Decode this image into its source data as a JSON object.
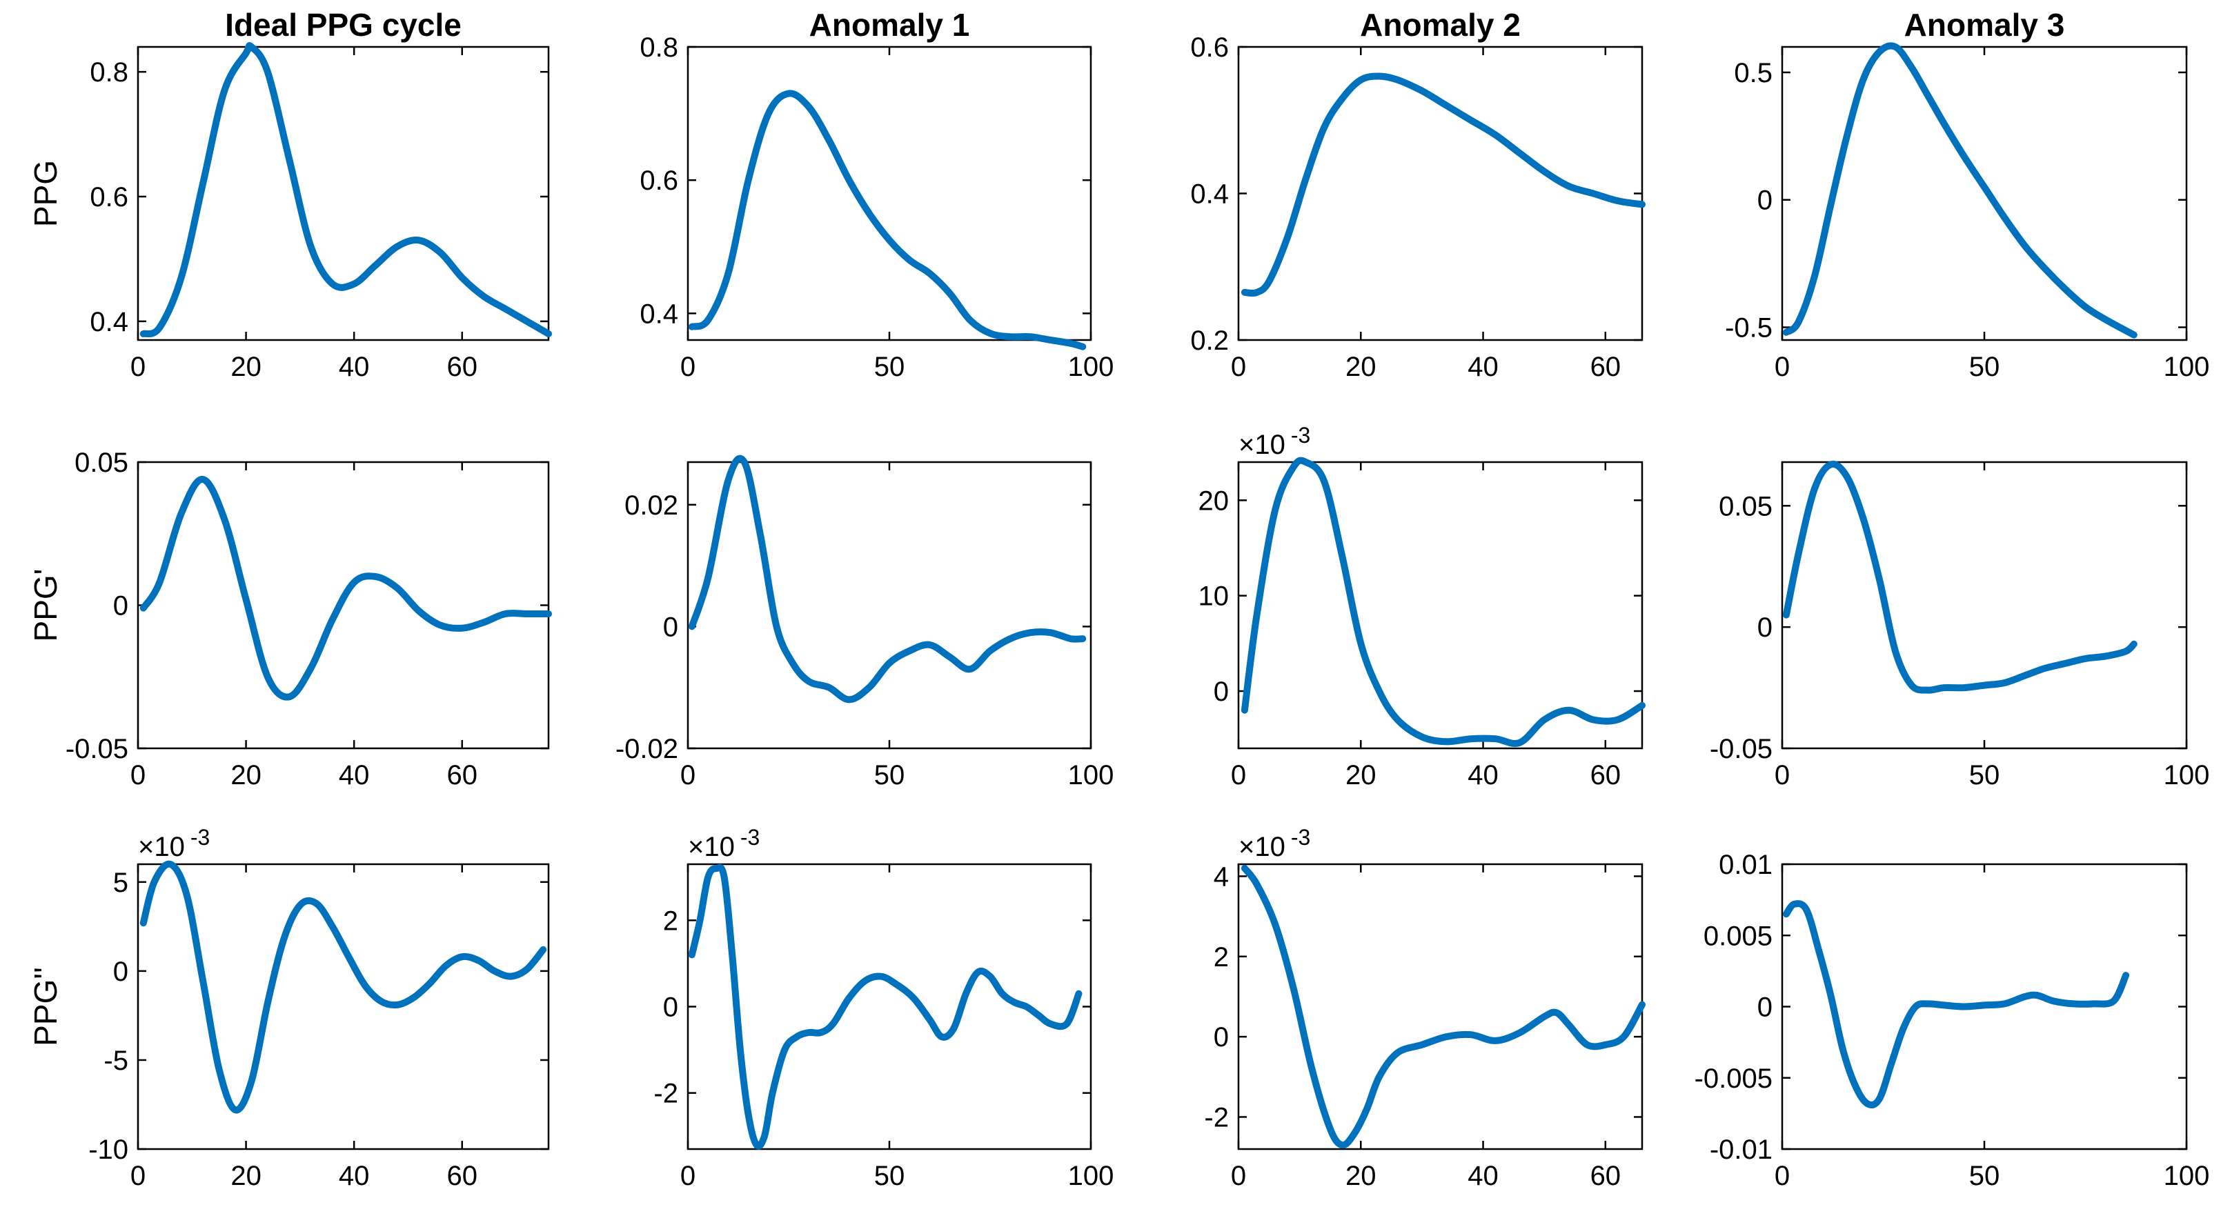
{
  "figure": {
    "column_titles": [
      "Ideal PPG cycle",
      "Anomaly 1",
      "Anomaly 2",
      "Anomaly 3"
    ],
    "row_labels": [
      "PPG",
      "PPG'",
      "PPG''"
    ],
    "line_color": "#0072BD"
  },
  "chart_data": [
    {
      "type": "line",
      "row": 0,
      "col": 0,
      "title": "Ideal PPG cycle",
      "ylabel": "PPG",
      "xlim": [
        0,
        76
      ],
      "ylim": [
        0.37,
        0.84
      ],
      "xticks": [
        0,
        20,
        40,
        60
      ],
      "xtick_labels": [
        "0",
        "20",
        "40",
        "60"
      ],
      "yticks": [
        0.4,
        0.6,
        0.8
      ],
      "ytick_labels": [
        "0.4",
        "0.6",
        "0.8"
      ],
      "exponent": "",
      "x": [
        1,
        4,
        8,
        12,
        16,
        20,
        21,
        24,
        28,
        32,
        36,
        40,
        44,
        48,
        52,
        56,
        60,
        64,
        68,
        72,
        76
      ],
      "y": [
        0.38,
        0.39,
        0.47,
        0.62,
        0.77,
        0.83,
        0.84,
        0.8,
        0.66,
        0.52,
        0.46,
        0.46,
        0.49,
        0.52,
        0.53,
        0.51,
        0.47,
        0.44,
        0.42,
        0.4,
        0.38
      ]
    },
    {
      "type": "line",
      "row": 0,
      "col": 1,
      "title": "Anomaly 1",
      "ylabel": "",
      "xlim": [
        0,
        100
      ],
      "ylim": [
        0.36,
        0.8
      ],
      "xticks": [
        0,
        50,
        100
      ],
      "xtick_labels": [
        "0",
        "50",
        "100"
      ],
      "yticks": [
        0.4,
        0.6,
        0.8
      ],
      "ytick_labels": [
        "0.4",
        "0.6",
        "0.8"
      ],
      "exponent": "",
      "x": [
        1,
        5,
        10,
        15,
        20,
        25,
        30,
        35,
        40,
        45,
        50,
        55,
        60,
        65,
        70,
        75,
        80,
        85,
        90,
        95,
        98
      ],
      "y": [
        0.38,
        0.39,
        0.46,
        0.6,
        0.7,
        0.73,
        0.71,
        0.66,
        0.6,
        0.55,
        0.51,
        0.48,
        0.46,
        0.43,
        0.39,
        0.37,
        0.365,
        0.365,
        0.36,
        0.355,
        0.35
      ]
    },
    {
      "type": "line",
      "row": 0,
      "col": 2,
      "title": "Anomaly 2",
      "ylabel": "",
      "xlim": [
        0,
        66
      ],
      "ylim": [
        0.2,
        0.6
      ],
      "xticks": [
        0,
        20,
        40,
        60
      ],
      "xtick_labels": [
        "0",
        "20",
        "40",
        "60"
      ],
      "yticks": [
        0.2,
        0.4,
        0.6
      ],
      "ytick_labels": [
        "0.2",
        "0.4",
        "0.6"
      ],
      "exponent": "",
      "x": [
        1,
        3,
        5,
        8,
        11,
        14,
        17,
        20,
        23,
        26,
        30,
        34,
        38,
        42,
        46,
        50,
        54,
        58,
        62,
        66
      ],
      "y": [
        0.265,
        0.265,
        0.28,
        0.34,
        0.42,
        0.49,
        0.53,
        0.555,
        0.56,
        0.555,
        0.54,
        0.52,
        0.5,
        0.48,
        0.455,
        0.43,
        0.41,
        0.4,
        0.39,
        0.385
      ]
    },
    {
      "type": "line",
      "row": 0,
      "col": 3,
      "title": "Anomaly 3",
      "ylabel": "",
      "xlim": [
        0,
        100
      ],
      "ylim": [
        -0.55,
        0.6
      ],
      "xticks": [
        0,
        50,
        100
      ],
      "xtick_labels": [
        "0",
        "50",
        "100"
      ],
      "yticks": [
        -0.5,
        0,
        0.5
      ],
      "ytick_labels": [
        "-0.5",
        "0",
        "0.5"
      ],
      "exponent": "",
      "x": [
        1,
        4,
        8,
        12,
        16,
        20,
        24,
        28,
        32,
        36,
        40,
        45,
        50,
        55,
        60,
        65,
        70,
        75,
        80,
        87
      ],
      "y": [
        -0.52,
        -0.48,
        -0.3,
        -0.02,
        0.25,
        0.47,
        0.58,
        0.6,
        0.52,
        0.41,
        0.3,
        0.17,
        0.05,
        -0.07,
        -0.18,
        -0.27,
        -0.35,
        -0.42,
        -0.47,
        -0.53
      ]
    },
    {
      "type": "line",
      "row": 1,
      "col": 0,
      "title": "",
      "ylabel": "PPG'",
      "xlim": [
        0,
        76
      ],
      "ylim": [
        -0.05,
        0.05
      ],
      "xticks": [
        0,
        20,
        40,
        60
      ],
      "xtick_labels": [
        "0",
        "20",
        "40",
        "60"
      ],
      "yticks": [
        -0.05,
        0,
        0.05
      ],
      "ytick_labels": [
        "-0.05",
        "0",
        "0.05"
      ],
      "exponent": "",
      "x": [
        1,
        4,
        8,
        12,
        16,
        20,
        24,
        28,
        32,
        36,
        40,
        44,
        48,
        52,
        56,
        60,
        64,
        68,
        72,
        76
      ],
      "y": [
        -0.001,
        0.008,
        0.032,
        0.044,
        0.03,
        0.002,
        -0.025,
        -0.032,
        -0.022,
        -0.005,
        0.008,
        0.01,
        0.006,
        -0.002,
        -0.007,
        -0.008,
        -0.006,
        -0.003,
        -0.003,
        -0.003
      ]
    },
    {
      "type": "line",
      "row": 1,
      "col": 1,
      "title": "",
      "ylabel": "",
      "xlim": [
        0,
        100
      ],
      "ylim": [
        -0.02,
        0.027
      ],
      "xticks": [
        0,
        50,
        100
      ],
      "xtick_labels": [
        "0",
        "50",
        "100"
      ],
      "yticks": [
        -0.02,
        0,
        0.02
      ],
      "ytick_labels": [
        "-0.02",
        "0",
        "0.02"
      ],
      "exponent": "",
      "x": [
        1,
        5,
        10,
        14,
        18,
        22,
        26,
        30,
        35,
        40,
        45,
        50,
        55,
        60,
        65,
        70,
        75,
        80,
        85,
        90,
        95,
        98
      ],
      "y": [
        0,
        0.008,
        0.024,
        0.027,
        0.015,
        0,
        -0.006,
        -0.009,
        -0.01,
        -0.012,
        -0.01,
        -0.006,
        -0.004,
        -0.003,
        -0.005,
        -0.007,
        -0.004,
        -0.002,
        -0.001,
        -0.001,
        -0.002,
        -0.002
      ]
    },
    {
      "type": "line",
      "row": 1,
      "col": 2,
      "title": "",
      "ylabel": "",
      "xlim": [
        0,
        66
      ],
      "ylim": [
        -6,
        24
      ],
      "xticks": [
        0,
        20,
        40,
        60
      ],
      "xtick_labels": [
        "0",
        "20",
        "40",
        "60"
      ],
      "yticks": [
        0,
        10,
        20
      ],
      "ytick_labels": [
        "0",
        "10",
        "20"
      ],
      "exponent": "×10 -3",
      "x": [
        1,
        3,
        6,
        9,
        11,
        14,
        17,
        20,
        23,
        26,
        30,
        34,
        38,
        42,
        46,
        50,
        54,
        58,
        62,
        66
      ],
      "y": [
        -2,
        8,
        19,
        23.5,
        24,
        22,
        14,
        5,
        0,
        -3,
        -4.8,
        -5.3,
        -5,
        -5,
        -5.4,
        -3,
        -2,
        -3,
        -3,
        -1.5
      ]
    },
    {
      "type": "line",
      "row": 1,
      "col": 3,
      "title": "",
      "ylabel": "",
      "xlim": [
        0,
        100
      ],
      "ylim": [
        -0.05,
        0.068
      ],
      "xticks": [
        0,
        50,
        100
      ],
      "xtick_labels": [
        "0",
        "50",
        "100"
      ],
      "yticks": [
        -0.05,
        0,
        0.05
      ],
      "ytick_labels": [
        "-0.05",
        "0",
        "0.05"
      ],
      "exponent": "",
      "x": [
        1,
        4,
        8,
        12,
        16,
        20,
        24,
        28,
        32,
        36,
        40,
        45,
        50,
        55,
        60,
        65,
        70,
        75,
        80,
        85,
        87
      ],
      "y": [
        0.005,
        0.03,
        0.057,
        0.067,
        0.062,
        0.045,
        0.02,
        -0.01,
        -0.024,
        -0.026,
        -0.025,
        -0.025,
        -0.024,
        -0.023,
        -0.02,
        -0.017,
        -0.015,
        -0.013,
        -0.012,
        -0.01,
        -0.007
      ]
    },
    {
      "type": "line",
      "row": 2,
      "col": 0,
      "title": "",
      "ylabel": "PPG''",
      "xlim": [
        0,
        76
      ],
      "ylim": [
        -10,
        6
      ],
      "xticks": [
        0,
        20,
        40,
        60
      ],
      "xtick_labels": [
        "0",
        "20",
        "40",
        "60"
      ],
      "yticks": [
        -10,
        -5,
        0,
        5
      ],
      "ytick_labels": [
        "-10",
        "-5",
        "0",
        "5"
      ],
      "exponent": "×10 -3",
      "x": [
        1,
        3,
        6,
        9,
        12,
        15,
        18,
        21,
        24,
        27,
        30,
        33,
        36,
        39,
        42,
        45,
        48,
        51,
        54,
        57,
        60,
        63,
        66,
        69,
        72,
        75
      ],
      "y": [
        2.7,
        5,
        6,
        4.3,
        -0.5,
        -5.5,
        -7.8,
        -6.2,
        -1.8,
        1.8,
        3.7,
        3.8,
        2.5,
        0.8,
        -0.8,
        -1.7,
        -1.9,
        -1.5,
        -0.7,
        0.3,
        0.8,
        0.6,
        0,
        -0.3,
        0.1,
        1.2
      ]
    },
    {
      "type": "line",
      "row": 2,
      "col": 1,
      "title": "",
      "ylabel": "",
      "xlim": [
        0,
        100
      ],
      "ylim": [
        -3.3,
        3.3
      ],
      "xticks": [
        0,
        50,
        100
      ],
      "xtick_labels": [
        "0",
        "50",
        "100"
      ],
      "yticks": [
        -2,
        0,
        2
      ],
      "ytick_labels": [
        "-2",
        "0",
        "2"
      ],
      "exponent": "×10 -3",
      "x": [
        1,
        3,
        5,
        7,
        9,
        11,
        13,
        15,
        17,
        19,
        21,
        24,
        27,
        30,
        33,
        36,
        40,
        44,
        48,
        52,
        56,
        60,
        63,
        66,
        69,
        72,
        75,
        78,
        81,
        84,
        87,
        90,
        94,
        97
      ],
      "y": [
        1.2,
        2,
        3,
        3.2,
        3,
        1.2,
        -1,
        -2.5,
        -3.2,
        -3,
        -2,
        -1,
        -0.7,
        -0.6,
        -0.6,
        -0.4,
        0.2,
        0.6,
        0.7,
        0.5,
        0.2,
        -0.3,
        -0.7,
        -0.5,
        0.3,
        0.8,
        0.7,
        0.3,
        0.1,
        0,
        -0.2,
        -0.4,
        -0.4,
        0.3
      ]
    },
    {
      "type": "line",
      "row": 2,
      "col": 2,
      "title": "",
      "ylabel": "",
      "xlim": [
        0,
        66
      ],
      "ylim": [
        -2.8,
        4.3
      ],
      "xticks": [
        0,
        20,
        40,
        60
      ],
      "xtick_labels": [
        "0",
        "20",
        "40",
        "60"
      ],
      "yticks": [
        -2,
        0,
        2,
        4
      ],
      "ytick_labels": [
        "-2",
        "0",
        "2",
        "4"
      ],
      "exponent": "×10 -3",
      "x": [
        1,
        3,
        6,
        9,
        12,
        15,
        17,
        19,
        21,
        23,
        26,
        30,
        34,
        38,
        42,
        46,
        50,
        52,
        54,
        57,
        60,
        63,
        66
      ],
      "y": [
        4.2,
        3.8,
        2.8,
        1.2,
        -0.8,
        -2.3,
        -2.7,
        -2.4,
        -1.8,
        -1,
        -0.4,
        -0.2,
        0,
        0.05,
        -0.1,
        0.1,
        0.5,
        0.6,
        0.3,
        -0.2,
        -0.2,
        0,
        0.8
      ]
    },
    {
      "type": "line",
      "row": 2,
      "col": 3,
      "title": "",
      "ylabel": "",
      "xlim": [
        0,
        100
      ],
      "ylim": [
        -0.01,
        0.01
      ],
      "xticks": [
        0,
        50,
        100
      ],
      "xtick_labels": [
        "0",
        "50",
        "100"
      ],
      "yticks": [
        -0.01,
        -0.005,
        0,
        0.005,
        0.01
      ],
      "ytick_labels": [
        "-0.01",
        "-0.005",
        "0",
        "0.005",
        "0.01"
      ],
      "exponent": "",
      "x": [
        1,
        3,
        6,
        9,
        12,
        15,
        18,
        21,
        24,
        27,
        30,
        33,
        36,
        40,
        45,
        50,
        55,
        60,
        63,
        67,
        72,
        77,
        82,
        85
      ],
      "y": [
        0.0065,
        0.0072,
        0.0068,
        0.004,
        0.0008,
        -0.003,
        -0.0055,
        -0.0068,
        -0.0065,
        -0.004,
        -0.0015,
        0,
        0.0002,
        0.0001,
        0,
        0.0001,
        0.0002,
        0.0007,
        0.0008,
        0.0004,
        0.0002,
        0.0002,
        0.0004,
        0.0022
      ]
    }
  ]
}
